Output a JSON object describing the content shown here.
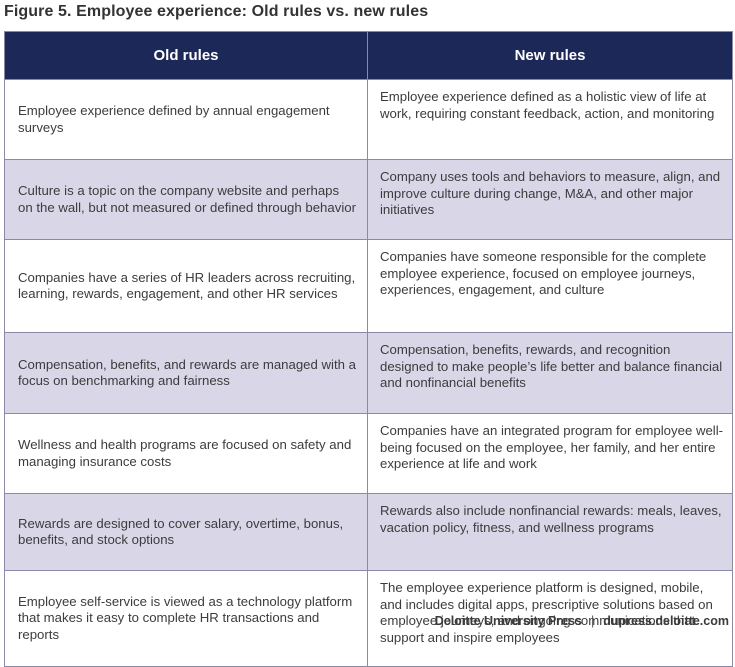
{
  "figure": {
    "title": "Figure 5. Employee experience: Old rules vs. new rules"
  },
  "table": {
    "headers": [
      "Old rules",
      "New rules"
    ],
    "rows": [
      {
        "old": "Employee experience defined by annual engagement surveys",
        "new": "Employee experience defined as a holistic view of life at work, requiring constant feedback, action, and monitoring"
      },
      {
        "old": "Culture is a topic on the company website and perhaps on the wall, but not measured or defined through behavior",
        "new": "Company uses tools and behaviors to measure, align, and improve culture during change, M&A, and other major initiatives"
      },
      {
        "old": "Companies have a series of HR leaders across recruiting, learning, rewards, engagement, and other HR services",
        "new": "Companies have someone responsible for the complete employee experience, focused on employee journeys, experiences, engagement, and culture"
      },
      {
        "old": "Compensation, benefits, and rewards are managed with a focus on benchmarking and fairness",
        "new": "Compensation, benefits, rewards, and recognition designed to make people’s life better and balance financial and nonfinancial benefits"
      },
      {
        "old": "Wellness and health programs are focused on safety and managing insurance costs",
        "new": "Companies have an integrated program for employee well-being focused on the employee, her family, and her entire experience at life and work"
      },
      {
        "old": "Rewards are designed to cover salary, overtime, bonus, benefits, and stock options",
        "new": "Rewards also include nonfinancial rewards: meals, leaves, vacation policy, fitness, and wellness programs"
      },
      {
        "old": "Employee self-service is viewed as a technology platform that makes it easy to complete HR transactions and reports",
        "new": "The employee experience platform is designed, mobile, and includes digital apps, prescriptive solutions based on employee journeys, and ongoing communications that support and inspire employees"
      }
    ]
  },
  "footer": {
    "publisher": "Deloitte University Press",
    "separator": "|",
    "url": "dupress.deloitte.com"
  },
  "colors": {
    "header_bg": "#1c2857",
    "shaded_row_bg": "#d9d6e8",
    "border": "#8a8aa8"
  }
}
